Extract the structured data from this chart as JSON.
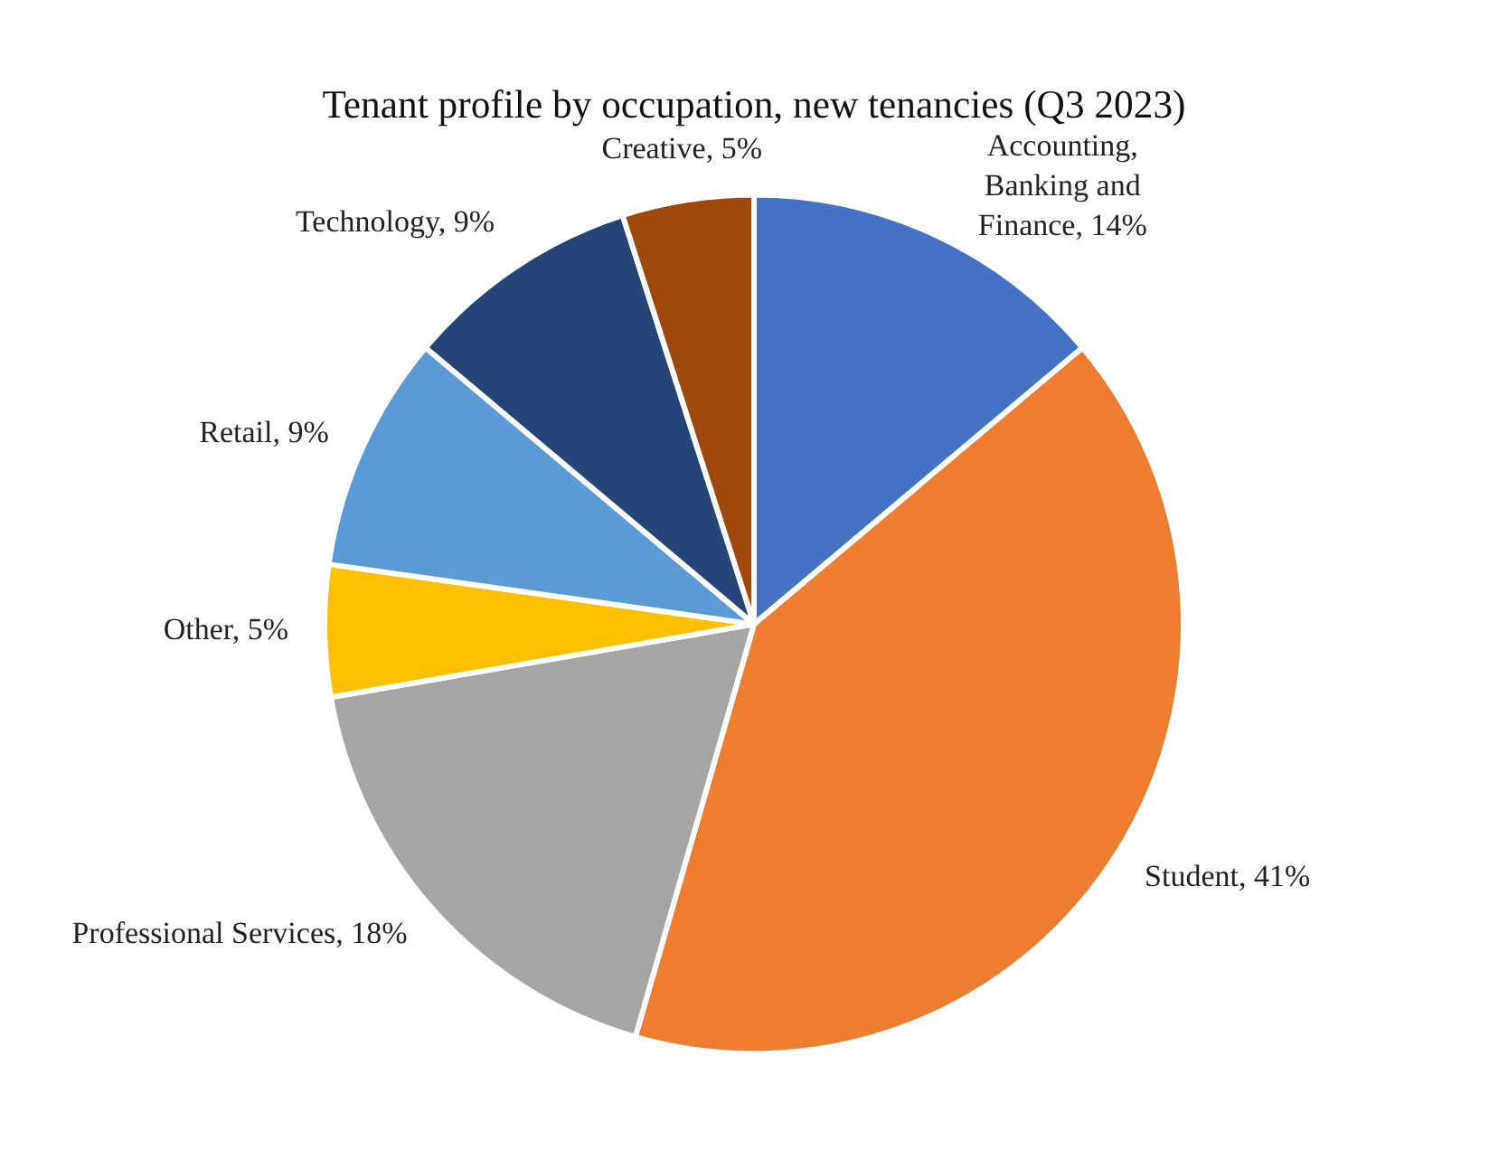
{
  "chart_data": {
    "type": "pie",
    "title": "Tenant profile by occupation, new tenancies (Q3 2023)",
    "categories": [
      "Accounting, Banking and Finance",
      "Student",
      "Professional Services",
      "Other",
      "Retail",
      "Technology",
      "Creative"
    ],
    "values": [
      14,
      41,
      18,
      5,
      9,
      9,
      5
    ],
    "colors": [
      "#4472c4",
      "#ed7d31",
      "#a5a5a5",
      "#ffc000",
      "#5b9bd5",
      "#264478",
      "#9e480e"
    ],
    "value_labels": [
      "14%",
      "41%",
      "18%",
      "5%",
      "9%",
      "9%",
      "5%"
    ],
    "legend": false
  }
}
